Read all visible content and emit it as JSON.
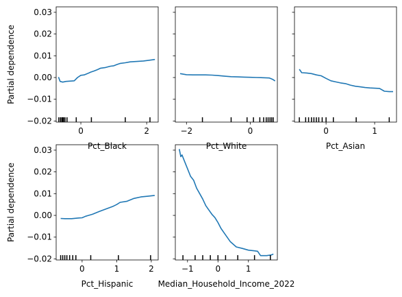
{
  "chart_data": {
    "type": "line",
    "shared_ylabel": "Partial dependence",
    "ylim": [
      -0.0205,
      0.0325
    ],
    "yticks": [
      -0.02,
      -0.01,
      0.0,
      0.01,
      0.02,
      0.03
    ],
    "ytick_labels": [
      "−0.02",
      "−0.01",
      "0.00",
      "0.01",
      "0.02",
      "0.03"
    ],
    "panels": [
      {
        "xlabel": "Pct_Black",
        "xlim": [
          -0.75,
          2.35
        ],
        "xticks": [
          0,
          2
        ],
        "xtick_labels": [
          "0",
          "2"
        ],
        "rug": [
          -0.67,
          -0.62,
          -0.58,
          -0.55,
          -0.52,
          -0.48,
          -0.42,
          -0.14,
          0.32,
          1.35,
          2.1
        ],
        "x": [
          -0.68,
          -0.63,
          -0.55,
          -0.45,
          -0.2,
          -0.1,
          0.0,
          0.1,
          0.2,
          0.3,
          0.4,
          0.5,
          0.6,
          0.75,
          0.9,
          1.0,
          1.1,
          1.2,
          1.35,
          1.5,
          1.7,
          1.9,
          2.1,
          2.25
        ],
        "y": [
          0.0002,
          -0.0018,
          -0.0021,
          -0.0018,
          -0.0015,
          0.0,
          0.001,
          0.0012,
          0.0018,
          0.0025,
          0.003,
          0.0036,
          0.0043,
          0.0046,
          0.0052,
          0.0054,
          0.006,
          0.0065,
          0.0068,
          0.0072,
          0.0074,
          0.0076,
          0.008,
          0.0083
        ]
      },
      {
        "xlabel": "Pct_White",
        "xlim": [
          -2.35,
          0.85
        ],
        "xticks": [
          -2,
          0
        ],
        "xtick_labels": [
          "−2",
          "0"
        ],
        "rug": [
          -1.5,
          -0.6,
          -0.1,
          0.1,
          0.3,
          0.42,
          0.5,
          0.56,
          0.62,
          0.67,
          0.72
        ],
        "x": [
          -2.2,
          -2.0,
          -1.8,
          -1.6,
          -1.4,
          -1.2,
          -1.0,
          -0.8,
          -0.6,
          -0.4,
          -0.2,
          0.0,
          0.2,
          0.4,
          0.6,
          0.7,
          0.78
        ],
        "y": [
          0.0018,
          0.0013,
          0.0012,
          0.0012,
          0.0012,
          0.0011,
          0.0009,
          0.0006,
          0.0004,
          0.0003,
          0.0002,
          0.0001,
          0.0,
          -0.0001,
          -0.0002,
          -0.0008,
          -0.0016
        ]
      },
      {
        "xlabel": "Pct_Asian",
        "xlim": [
          -0.65,
          1.45
        ],
        "xticks": [
          0,
          1
        ],
        "xtick_labels": [
          "0",
          "1"
        ],
        "rug": [
          -0.55,
          -0.42,
          -0.36,
          -0.3,
          -0.25,
          -0.2,
          -0.15,
          -0.08,
          0.0,
          0.15,
          0.62,
          1.3
        ],
        "x": [
          -0.55,
          -0.5,
          -0.4,
          -0.3,
          -0.2,
          -0.1,
          0.0,
          0.1,
          0.2,
          0.3,
          0.4,
          0.5,
          0.6,
          0.7,
          0.8,
          0.9,
          1.0,
          1.1,
          1.2,
          1.3,
          1.38
        ],
        "y": [
          0.0038,
          0.0022,
          0.0021,
          0.0018,
          0.0012,
          0.0008,
          -0.0004,
          -0.0015,
          -0.002,
          -0.0025,
          -0.0028,
          -0.0035,
          -0.004,
          -0.0043,
          -0.0046,
          -0.0048,
          -0.0049,
          -0.005,
          -0.0063,
          -0.0065,
          -0.0065
        ]
      },
      {
        "xlabel": "Pct_Hispanic",
        "xlim": [
          -0.75,
          2.2
        ],
        "xticks": [
          0,
          1,
          2
        ],
        "xtick_labels": [
          "0",
          "1",
          "2"
        ],
        "rug": [
          -0.62,
          -0.56,
          -0.5,
          -0.44,
          -0.36,
          -0.27,
          -0.18,
          0.25,
          1.05,
          1.98
        ],
        "x": [
          -0.62,
          -0.5,
          -0.3,
          -0.1,
          0.0,
          0.1,
          0.3,
          0.5,
          0.7,
          0.9,
          1.0,
          1.1,
          1.3,
          1.5,
          1.7,
          1.9,
          2.1
        ],
        "y": [
          -0.0014,
          -0.0015,
          -0.0015,
          -0.0012,
          -0.0011,
          -0.0004,
          0.0005,
          0.0018,
          0.003,
          0.0042,
          0.005,
          0.006,
          0.0065,
          0.0078,
          0.0085,
          0.0088,
          0.0092
        ]
      },
      {
        "xlabel": "Median_Household_Income_2022",
        "xlim": [
          -1.4,
          1.95
        ],
        "xticks": [
          -1,
          0,
          1
        ],
        "xtick_labels": [
          "−1",
          "0",
          "1"
        ],
        "rug": [
          -1.15,
          -0.75,
          -0.5,
          -0.25,
          0.0,
          0.25,
          0.65,
          1.2,
          1.72
        ],
        "x": [
          -1.27,
          -1.22,
          -1.18,
          -1.1,
          -1.0,
          -0.9,
          -0.8,
          -0.7,
          -0.6,
          -0.5,
          -0.4,
          -0.3,
          -0.2,
          -0.1,
          0.0,
          0.1,
          0.2,
          0.3,
          0.4,
          0.6,
          0.8,
          1.0,
          1.2,
          1.3,
          1.4,
          1.6,
          1.75,
          1.82
        ],
        "y": [
          0.0305,
          0.027,
          0.0278,
          0.025,
          0.0215,
          0.018,
          0.0162,
          0.0125,
          0.01,
          0.0075,
          0.0045,
          0.0025,
          0.0005,
          -0.001,
          -0.0033,
          -0.006,
          -0.008,
          -0.01,
          -0.012,
          -0.0145,
          -0.0152,
          -0.016,
          -0.0163,
          -0.0165,
          -0.0185,
          -0.0185,
          -0.0182,
          -0.0178
        ]
      }
    ]
  }
}
